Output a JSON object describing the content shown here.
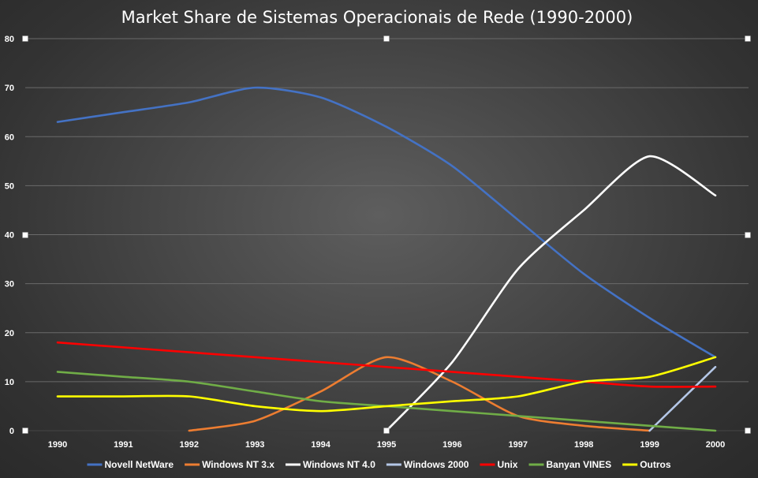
{
  "chart_data": {
    "type": "line",
    "title": "Market Share de Sistemas Operacionais de Rede (1990-2000)",
    "xlabel": "",
    "ylabel": "",
    "categories": [
      "1990",
      "1991",
      "1992",
      "1993",
      "1994",
      "1995",
      "1996",
      "1997",
      "1998",
      "1999",
      "2000"
    ],
    "ylim": [
      0,
      80
    ],
    "yticks": [
      0,
      10,
      20,
      30,
      40,
      50,
      60,
      70,
      80
    ],
    "grid": true,
    "legend_position": "bottom",
    "series": [
      {
        "name": "Novell NetWare",
        "color": "#4472c4",
        "values": [
          63,
          65,
          67,
          70,
          68,
          62,
          54,
          43,
          32,
          23,
          15
        ]
      },
      {
        "name": "Windows NT 3.x",
        "color": "#ed7d31",
        "values": [
          null,
          null,
          0,
          2,
          8,
          15,
          10,
          3,
          1,
          0,
          null
        ]
      },
      {
        "name": "Windows NT 4.0",
        "color": "#ffffff",
        "values": [
          null,
          null,
          null,
          null,
          null,
          0,
          14,
          33,
          45,
          56,
          48
        ]
      },
      {
        "name": "Windows 2000",
        "color": "#b4c7e7",
        "values": [
          null,
          null,
          null,
          null,
          null,
          null,
          null,
          null,
          null,
          0,
          13
        ]
      },
      {
        "name": "Unix",
        "color": "#ff0000",
        "values": [
          18,
          17,
          16,
          15,
          14,
          13,
          12,
          11,
          10,
          9,
          9
        ]
      },
      {
        "name": "Banyan VINES",
        "color": "#70ad47",
        "values": [
          12,
          11,
          10,
          8,
          6,
          5,
          4,
          3,
          2,
          1,
          0
        ]
      },
      {
        "name": "Outros",
        "color": "#ffff00",
        "values": [
          7,
          7,
          7,
          5,
          4,
          5,
          6,
          7,
          10,
          11,
          15
        ]
      }
    ]
  }
}
